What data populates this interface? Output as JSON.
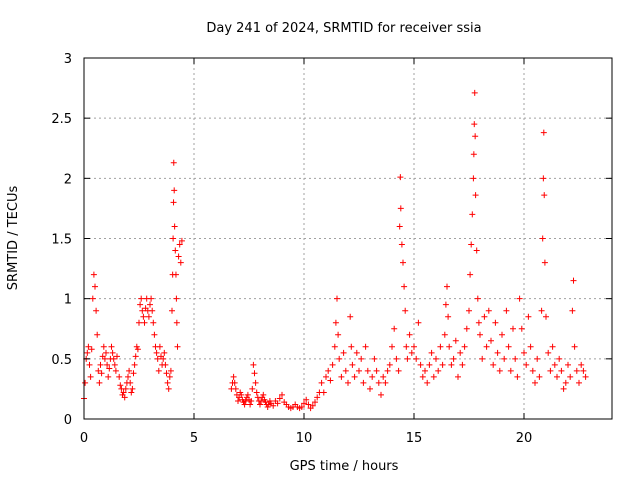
{
  "chart_data": {
    "type": "scatter",
    "title": "Day 241 of 2024, SRMTID for receiver ssia",
    "xlabel": "GPS time / hours",
    "ylabel": "SRMTID / TECUs",
    "xlim": [
      0,
      24
    ],
    "ylim": [
      0,
      3
    ],
    "xticks": [
      0,
      5,
      10,
      15,
      20
    ],
    "xtick_labels": [
      "0",
      "5",
      "10",
      "15",
      "20"
    ],
    "yticks": [
      0,
      0.5,
      1,
      1.5,
      2,
      2.5,
      3
    ],
    "ytick_labels": [
      "0",
      "0.5",
      "1",
      "1.5",
      "2",
      "2.5",
      "3"
    ],
    "grid": true,
    "marker": "+",
    "color": "#ff0000",
    "series": [
      {
        "name": "SRMTID",
        "points": [
          [
            0.0,
            0.17
          ],
          [
            0.05,
            0.3
          ],
          [
            0.1,
            0.5
          ],
          [
            0.15,
            0.55
          ],
          [
            0.2,
            0.6
          ],
          [
            0.25,
            0.45
          ],
          [
            0.3,
            0.35
          ],
          [
            0.35,
            0.58
          ],
          [
            0.4,
            1.0
          ],
          [
            0.45,
            1.2
          ],
          [
            0.5,
            1.1
          ],
          [
            0.55,
            0.9
          ],
          [
            0.6,
            0.7
          ],
          [
            0.65,
            0.4
          ],
          [
            0.7,
            0.3
          ],
          [
            0.75,
            0.45
          ],
          [
            0.8,
            0.38
          ],
          [
            0.85,
            0.52
          ],
          [
            0.9,
            0.6
          ],
          [
            0.95,
            0.5
          ],
          [
            1.0,
            0.55
          ],
          [
            1.05,
            0.45
          ],
          [
            1.1,
            0.35
          ],
          [
            1.15,
            0.42
          ],
          [
            1.2,
            0.5
          ],
          [
            1.25,
            0.6
          ],
          [
            1.3,
            0.55
          ],
          [
            1.35,
            0.5
          ],
          [
            1.4,
            0.45
          ],
          [
            1.45,
            0.4
          ],
          [
            1.5,
            0.52
          ],
          [
            1.6,
            0.35
          ],
          [
            1.65,
            0.28
          ],
          [
            1.7,
            0.25
          ],
          [
            1.75,
            0.2
          ],
          [
            1.8,
            0.22
          ],
          [
            1.85,
            0.18
          ],
          [
            1.9,
            0.25
          ],
          [
            1.95,
            0.3
          ],
          [
            2.0,
            0.35
          ],
          [
            2.05,
            0.4
          ],
          [
            2.1,
            0.3
          ],
          [
            2.15,
            0.22
          ],
          [
            2.2,
            0.25
          ],
          [
            2.25,
            0.38
          ],
          [
            2.3,
            0.45
          ],
          [
            2.35,
            0.52
          ],
          [
            2.4,
            0.6
          ],
          [
            2.45,
            0.58
          ],
          [
            2.5,
            0.8
          ],
          [
            2.55,
            0.95
          ],
          [
            2.6,
            1.0
          ],
          [
            2.65,
            0.9
          ],
          [
            2.7,
            0.85
          ],
          [
            2.75,
            0.8
          ],
          [
            2.8,
            0.92
          ],
          [
            2.85,
            1.0
          ],
          [
            2.9,
            0.9
          ],
          [
            2.95,
            0.85
          ],
          [
            3.0,
            0.95
          ],
          [
            3.05,
            1.0
          ],
          [
            3.1,
            0.9
          ],
          [
            3.15,
            0.8
          ],
          [
            3.2,
            0.7
          ],
          [
            3.25,
            0.6
          ],
          [
            3.3,
            0.55
          ],
          [
            3.35,
            0.5
          ],
          [
            3.4,
            0.4
          ],
          [
            3.45,
            0.6
          ],
          [
            3.5,
            0.52
          ],
          [
            3.55,
            0.45
          ],
          [
            3.6,
            0.5
          ],
          [
            3.65,
            0.55
          ],
          [
            3.7,
            0.45
          ],
          [
            3.75,
            0.38
          ],
          [
            3.8,
            0.3
          ],
          [
            3.85,
            0.25
          ],
          [
            3.9,
            0.35
          ],
          [
            3.95,
            0.4
          ],
          [
            4.0,
            0.9
          ],
          [
            4.03,
            1.2
          ],
          [
            4.05,
            1.5
          ],
          [
            4.07,
            1.8
          ],
          [
            4.08,
            2.13
          ],
          [
            4.1,
            1.9
          ],
          [
            4.12,
            1.6
          ],
          [
            4.15,
            1.4
          ],
          [
            4.18,
            1.2
          ],
          [
            4.2,
            1.0
          ],
          [
            4.22,
            0.8
          ],
          [
            4.25,
            0.6
          ],
          [
            4.3,
            1.35
          ],
          [
            4.35,
            1.45
          ],
          [
            4.4,
            1.3
          ],
          [
            4.45,
            1.48
          ],
          [
            6.7,
            0.25
          ],
          [
            6.75,
            0.3
          ],
          [
            6.8,
            0.35
          ],
          [
            6.85,
            0.3
          ],
          [
            6.9,
            0.25
          ],
          [
            6.95,
            0.2
          ],
          [
            7.0,
            0.15
          ],
          [
            7.05,
            0.18
          ],
          [
            7.1,
            0.22
          ],
          [
            7.15,
            0.2
          ],
          [
            7.2,
            0.16
          ],
          [
            7.25,
            0.14
          ],
          [
            7.3,
            0.12
          ],
          [
            7.35,
            0.15
          ],
          [
            7.4,
            0.18
          ],
          [
            7.45,
            0.2
          ],
          [
            7.5,
            0.16
          ],
          [
            7.55,
            0.12
          ],
          [
            7.6,
            0.15
          ],
          [
            7.65,
            0.25
          ],
          [
            7.7,
            0.45
          ],
          [
            7.75,
            0.38
          ],
          [
            7.8,
            0.3
          ],
          [
            7.85,
            0.22
          ],
          [
            7.9,
            0.18
          ],
          [
            7.95,
            0.15
          ],
          [
            8.0,
            0.12
          ],
          [
            8.05,
            0.15
          ],
          [
            8.1,
            0.18
          ],
          [
            8.15,
            0.2
          ],
          [
            8.2,
            0.16
          ],
          [
            8.25,
            0.14
          ],
          [
            8.3,
            0.12
          ],
          [
            8.35,
            0.1
          ],
          [
            8.4,
            0.12
          ],
          [
            8.45,
            0.15
          ],
          [
            8.5,
            0.13
          ],
          [
            8.6,
            0.11
          ],
          [
            8.7,
            0.15
          ],
          [
            8.8,
            0.13
          ],
          [
            8.9,
            0.17
          ],
          [
            9.0,
            0.2
          ],
          [
            9.1,
            0.14
          ],
          [
            9.2,
            0.12
          ],
          [
            9.3,
            0.1
          ],
          [
            9.4,
            0.09
          ],
          [
            9.5,
            0.1
          ],
          [
            9.6,
            0.12
          ],
          [
            9.7,
            0.1
          ],
          [
            9.8,
            0.09
          ],
          [
            9.9,
            0.1
          ],
          [
            10.0,
            0.13
          ],
          [
            10.1,
            0.16
          ],
          [
            10.2,
            0.12
          ],
          [
            10.3,
            0.09
          ],
          [
            10.4,
            0.11
          ],
          [
            10.5,
            0.14
          ],
          [
            10.6,
            0.18
          ],
          [
            10.7,
            0.22
          ],
          [
            10.8,
            0.3
          ],
          [
            10.9,
            0.22
          ],
          [
            11.0,
            0.35
          ],
          [
            11.1,
            0.4
          ],
          [
            11.2,
            0.32
          ],
          [
            11.3,
            0.45
          ],
          [
            11.4,
            0.6
          ],
          [
            11.45,
            0.8
          ],
          [
            11.5,
            1.0
          ],
          [
            11.55,
            0.7
          ],
          [
            11.6,
            0.5
          ],
          [
            11.7,
            0.35
          ],
          [
            11.8,
            0.55
          ],
          [
            11.9,
            0.4
          ],
          [
            12.0,
            0.3
          ],
          [
            12.1,
            0.85
          ],
          [
            12.15,
            0.6
          ],
          [
            12.2,
            0.45
          ],
          [
            12.3,
            0.35
          ],
          [
            12.4,
            0.55
          ],
          [
            12.5,
            0.4
          ],
          [
            12.6,
            0.5
          ],
          [
            12.7,
            0.3
          ],
          [
            12.8,
            0.6
          ],
          [
            12.9,
            0.4
          ],
          [
            13.0,
            0.25
          ],
          [
            13.1,
            0.35
          ],
          [
            13.2,
            0.5
          ],
          [
            13.3,
            0.4
          ],
          [
            13.4,
            0.3
          ],
          [
            13.5,
            0.2
          ],
          [
            13.6,
            0.35
          ],
          [
            13.7,
            0.3
          ],
          [
            13.8,
            0.4
          ],
          [
            13.9,
            0.45
          ],
          [
            14.0,
            0.6
          ],
          [
            14.1,
            0.75
          ],
          [
            14.2,
            0.5
          ],
          [
            14.3,
            0.4
          ],
          [
            14.35,
            1.6
          ],
          [
            14.38,
            2.01
          ],
          [
            14.4,
            1.75
          ],
          [
            14.45,
            1.45
          ],
          [
            14.5,
            1.3
          ],
          [
            14.55,
            1.1
          ],
          [
            14.6,
            0.9
          ],
          [
            14.65,
            0.6
          ],
          [
            14.7,
            0.5
          ],
          [
            14.8,
            0.7
          ],
          [
            14.9,
            0.55
          ],
          [
            15.0,
            0.6
          ],
          [
            15.1,
            0.5
          ],
          [
            15.2,
            0.8
          ],
          [
            15.3,
            0.45
          ],
          [
            15.4,
            0.35
          ],
          [
            15.5,
            0.4
          ],
          [
            15.6,
            0.3
          ],
          [
            15.7,
            0.45
          ],
          [
            15.8,
            0.55
          ],
          [
            15.9,
            0.35
          ],
          [
            16.0,
            0.5
          ],
          [
            16.1,
            0.4
          ],
          [
            16.2,
            0.6
          ],
          [
            16.3,
            0.45
          ],
          [
            16.4,
            0.7
          ],
          [
            16.45,
            0.95
          ],
          [
            16.5,
            1.1
          ],
          [
            16.55,
            0.85
          ],
          [
            16.6,
            0.6
          ],
          [
            16.7,
            0.45
          ],
          [
            16.8,
            0.5
          ],
          [
            16.9,
            0.65
          ],
          [
            17.0,
            0.35
          ],
          [
            17.1,
            0.55
          ],
          [
            17.2,
            0.45
          ],
          [
            17.3,
            0.6
          ],
          [
            17.4,
            0.75
          ],
          [
            17.5,
            0.9
          ],
          [
            17.55,
            1.2
          ],
          [
            17.6,
            1.45
          ],
          [
            17.65,
            1.7
          ],
          [
            17.7,
            2.0
          ],
          [
            17.72,
            2.2
          ],
          [
            17.74,
            2.45
          ],
          [
            17.76,
            2.71
          ],
          [
            17.78,
            2.35
          ],
          [
            17.8,
            1.86
          ],
          [
            17.85,
            1.4
          ],
          [
            17.9,
            1.0
          ],
          [
            17.95,
            0.8
          ],
          [
            18.0,
            0.7
          ],
          [
            18.1,
            0.5
          ],
          [
            18.2,
            0.85
          ],
          [
            18.3,
            0.6
          ],
          [
            18.4,
            0.9
          ],
          [
            18.5,
            0.65
          ],
          [
            18.6,
            0.45
          ],
          [
            18.7,
            0.8
          ],
          [
            18.8,
            0.55
          ],
          [
            18.9,
            0.4
          ],
          [
            19.0,
            0.7
          ],
          [
            19.1,
            0.5
          ],
          [
            19.2,
            0.9
          ],
          [
            19.3,
            0.6
          ],
          [
            19.4,
            0.4
          ],
          [
            19.5,
            0.75
          ],
          [
            19.6,
            0.5
          ],
          [
            19.7,
            0.35
          ],
          [
            19.8,
            1.0
          ],
          [
            19.9,
            0.75
          ],
          [
            20.0,
            0.55
          ],
          [
            20.1,
            0.45
          ],
          [
            20.2,
            0.85
          ],
          [
            20.3,
            0.6
          ],
          [
            20.4,
            0.4
          ],
          [
            20.5,
            0.3
          ],
          [
            20.6,
            0.5
          ],
          [
            20.7,
            0.35
          ],
          [
            20.8,
            0.9
          ],
          [
            20.85,
            1.5
          ],
          [
            20.88,
            2.0
          ],
          [
            20.9,
            2.38
          ],
          [
            20.92,
            1.86
          ],
          [
            20.95,
            1.3
          ],
          [
            21.0,
            0.85
          ],
          [
            21.1,
            0.55
          ],
          [
            21.2,
            0.4
          ],
          [
            21.3,
            0.6
          ],
          [
            21.4,
            0.45
          ],
          [
            21.5,
            0.35
          ],
          [
            21.6,
            0.5
          ],
          [
            21.7,
            0.4
          ],
          [
            21.8,
            0.25
          ],
          [
            21.9,
            0.3
          ],
          [
            22.0,
            0.45
          ],
          [
            22.1,
            0.35
          ],
          [
            22.2,
            0.9
          ],
          [
            22.25,
            1.15
          ],
          [
            22.3,
            0.6
          ],
          [
            22.4,
            0.4
          ],
          [
            22.5,
            0.3
          ],
          [
            22.6,
            0.45
          ],
          [
            22.7,
            0.4
          ],
          [
            22.8,
            0.35
          ]
        ]
      }
    ]
  }
}
